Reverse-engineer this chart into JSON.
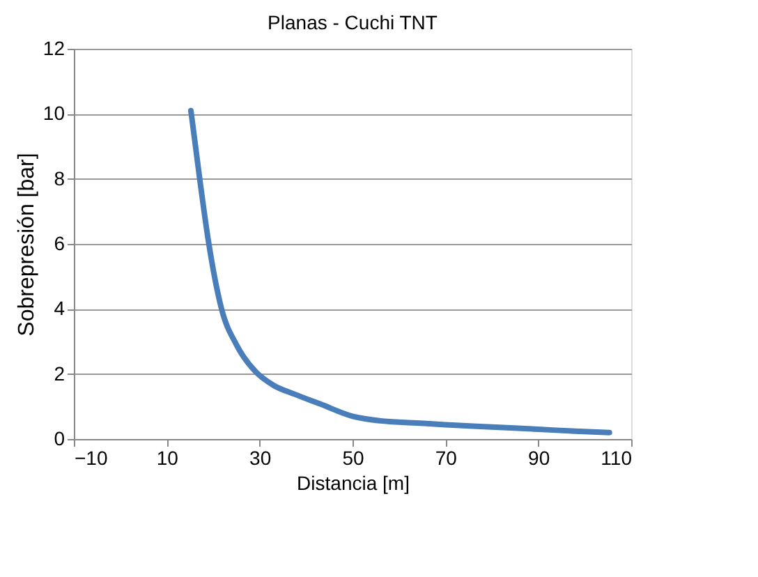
{
  "chart_data": {
    "type": "line",
    "title": "Planas - Cuchi TNT",
    "xlabel": "Distancia [m]",
    "ylabel": "Sobrepresión [bar]",
    "x": [
      15.2,
      17.1,
      19.0,
      21.8,
      25,
      29.2,
      33,
      37.5,
      43,
      50,
      56,
      63,
      70,
      80,
      90,
      98,
      105.3
    ],
    "series": [
      {
        "color": "#4a7ebb",
        "values": [
          10.1,
          8.0,
          6.06,
          4.0,
          2.9,
          2.06,
          1.65,
          1.38,
          1.08,
          0.7,
          0.56,
          0.5,
          0.44,
          0.37,
          0.3,
          0.24,
          0.2
        ]
      }
    ],
    "xlim": [
      -10,
      110
    ],
    "xticks": [
      -10,
      10,
      30,
      50,
      70,
      90,
      110
    ],
    "ylim": [
      0,
      12
    ],
    "yticks": [
      0,
      2,
      4,
      6,
      8,
      10,
      12
    ],
    "grid": "y",
    "marker": "none",
    "line_style": "solid"
  }
}
